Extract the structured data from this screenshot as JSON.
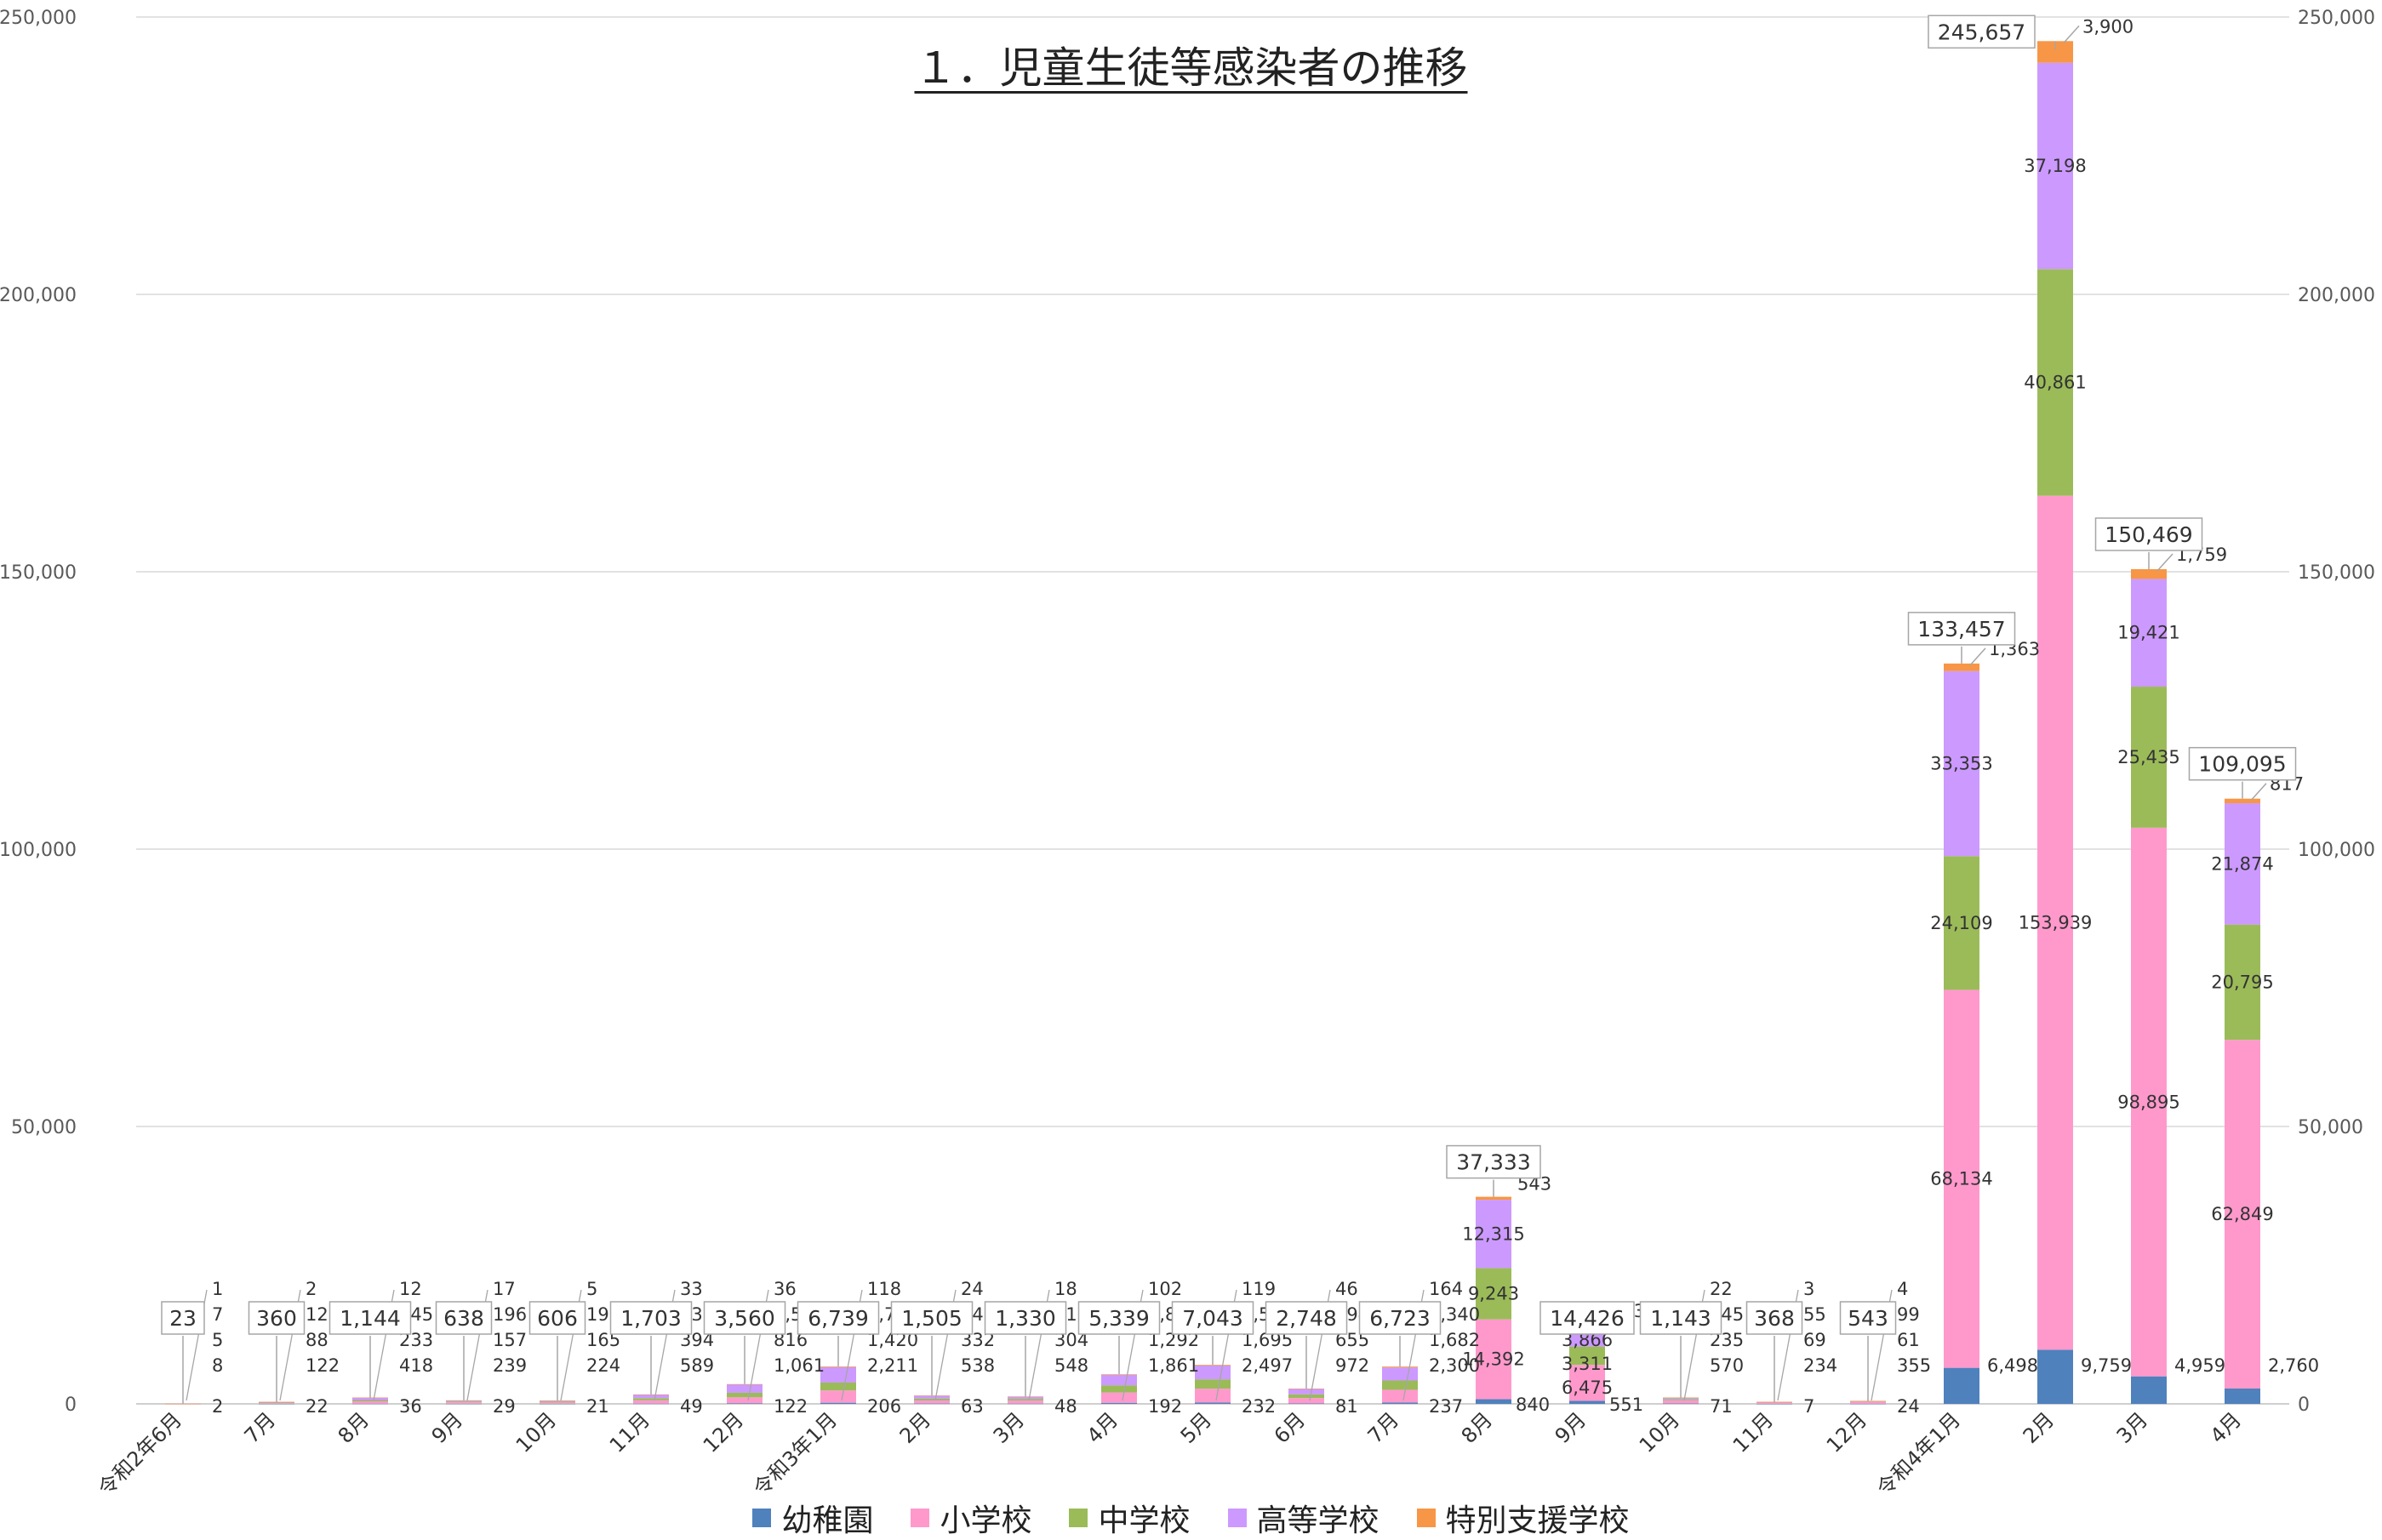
{
  "chart_data": {
    "type": "bar",
    "stacked": true,
    "title": "１．児童生徒等感染者の推移",
    "categories": [
      "令和2年6月",
      "7月",
      "8月",
      "9月",
      "10月",
      "11月",
      "12月",
      "令和3年1月",
      "2月",
      "3月",
      "4月",
      "5月",
      "6月",
      "7月",
      "8月",
      "9月",
      "10月",
      "11月",
      "12月",
      "令和4年1月",
      "2月",
      "3月",
      "4月"
    ],
    "series": [
      {
        "name": "幼稚園",
        "color": "#4f81bd",
        "values": [
          2,
          22,
          36,
          29,
          21,
          49,
          122,
          206,
          63,
          48,
          192,
          232,
          81,
          237,
          840,
          551,
          71,
          7,
          24,
          6498,
          9759,
          4959,
          2760
        ]
      },
      {
        "name": "小学校",
        "color": "#ff99cc",
        "values": [
          8,
          122,
          418,
          239,
          224,
          589,
          1061,
          2211,
          538,
          548,
          1861,
          2497,
          972,
          2300,
          14392,
          6475,
          570,
          234,
          355,
          68134,
          153939,
          98895,
          62849
        ]
      },
      {
        "name": "中学校",
        "color": "#9bbb59",
        "values": [
          5,
          88,
          233,
          157,
          165,
          394,
          816,
          1420,
          332,
          304,
          1292,
          1695,
          655,
          1682,
          9243,
          3311,
          235,
          69,
          61,
          24109,
          40861,
          25435,
          20795
        ]
      },
      {
        "name": "高等学校",
        "color": "#cc99ff",
        "values": [
          7,
          126,
          445,
          196,
          191,
          638,
          1525,
          2784,
          548,
          412,
          1892,
          2500,
          994,
          2340,
          12315,
          3866,
          245,
          55,
          99,
          33353,
          37198,
          19421,
          21874
        ]
      },
      {
        "name": "特別支援学校",
        "color": "#f79646",
        "values": [
          1,
          2,
          12,
          17,
          5,
          33,
          36,
          118,
          24,
          18,
          102,
          119,
          46,
          164,
          543,
          223,
          22,
          3,
          4,
          1363,
          3900,
          1759,
          817
        ]
      }
    ],
    "totals": [
      23,
      360,
      1144,
      638,
      606,
      1703,
      3560,
      6739,
      1505,
      1330,
      5339,
      7043,
      2748,
      6723,
      37333,
      14426,
      1143,
      368,
      543,
      133457,
      245657,
      150469,
      109095
    ],
    "ylim": [
      0,
      250000
    ],
    "yticks": [
      "0",
      "50,000",
      "100,000",
      "150,000",
      "200,000",
      "250,000"
    ],
    "ytick_values": [
      0,
      50000,
      100000,
      150000,
      200000,
      250000
    ],
    "grid": true,
    "secondary_axis": true,
    "legend_position": "bottom"
  }
}
